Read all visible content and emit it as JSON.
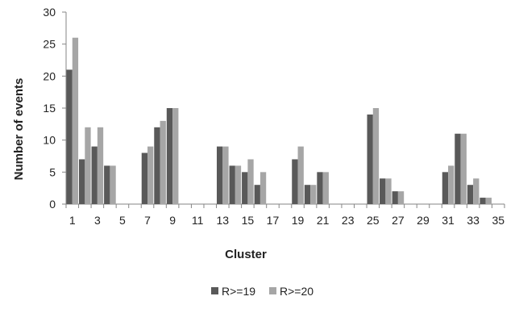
{
  "chart_data": {
    "type": "bar",
    "title": "",
    "xlabel": "Cluster",
    "ylabel": "Number of events",
    "ylim": [
      0,
      30
    ],
    "yticks": [
      0,
      5,
      10,
      15,
      20,
      25,
      30
    ],
    "categories": [
      "1",
      "2",
      "3",
      "4",
      "5",
      "6",
      "7",
      "8",
      "9",
      "10",
      "11",
      "12",
      "13",
      "14",
      "15",
      "16",
      "17",
      "18",
      "19",
      "20",
      "21",
      "22",
      "23",
      "24",
      "25",
      "26",
      "27",
      "28",
      "29",
      "30",
      "31",
      "32",
      "33",
      "34",
      "35"
    ],
    "xtick_labels": [
      "1",
      "3",
      "5",
      "7",
      "9",
      "11",
      "13",
      "15",
      "17",
      "19",
      "21",
      "23",
      "25",
      "27",
      "29",
      "31",
      "33",
      "35"
    ],
    "grid": false,
    "legend_position": "bottom",
    "series": [
      {
        "name": "R>=19",
        "color": "#595959",
        "values": [
          21,
          7,
          9,
          6,
          0,
          0,
          8,
          12,
          15,
          0,
          0,
          0,
          9,
          6,
          5,
          3,
          0,
          0,
          7,
          3,
          5,
          0,
          0,
          0,
          14,
          4,
          2,
          0,
          0,
          0,
          5,
          11,
          3,
          1,
          0
        ]
      },
      {
        "name": "R>=20",
        "color": "#a6a6a6",
        "values": [
          26,
          12,
          12,
          6,
          0,
          0,
          9,
          13,
          15,
          0,
          0,
          0,
          9,
          6,
          7,
          5,
          0,
          0,
          9,
          3,
          5,
          0,
          0,
          0,
          15,
          4,
          2,
          0,
          0,
          0,
          6,
          11,
          4,
          1,
          0
        ]
      }
    ]
  }
}
